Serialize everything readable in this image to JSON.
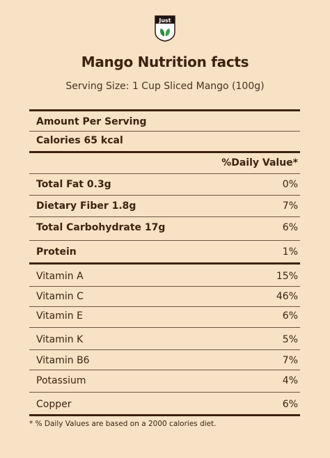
{
  "brand": {
    "logo_text": "Just"
  },
  "header": {
    "title": "Mango Nutrition facts",
    "serving_size": "Serving Size: 1 Cup Sliced Mango (100g)"
  },
  "summary": {
    "amount_per_serving": "Amount Per Serving",
    "calories": "Calories 65 kcal",
    "daily_value_header": "%Daily Value*"
  },
  "nutrients": [
    {
      "name": "Total Fat 0.3g",
      "dv": "0%",
      "bold": true
    },
    {
      "name": "Dietary Fiber 1.8g",
      "dv": "7%",
      "bold": true
    },
    {
      "name": "Total Carbohydrate 17g",
      "dv": "6%",
      "bold": true
    },
    {
      "name": "Protein",
      "dv": "1%",
      "bold": true
    },
    {
      "name": "Vitamin A",
      "dv": "15%",
      "bold": false
    },
    {
      "name": "Vitamin C",
      "dv": "46%",
      "bold": false
    },
    {
      "name": "Vitamin E",
      "dv": "6%",
      "bold": false
    },
    {
      "name": "Vitamin K",
      "dv": "5%",
      "bold": false
    },
    {
      "name": "Vitamin B6",
      "dv": "7%",
      "bold": false
    },
    {
      "name": "Potassium",
      "dv": "4%",
      "bold": false
    },
    {
      "name": "Copper",
      "dv": "6%",
      "bold": false
    }
  ],
  "footnote": "* % Daily Values are based on a 2000 calories diet.",
  "colors": {
    "background": "#f8e2c6",
    "text": "#3d2210",
    "logo_green": "#2e8b3a"
  }
}
